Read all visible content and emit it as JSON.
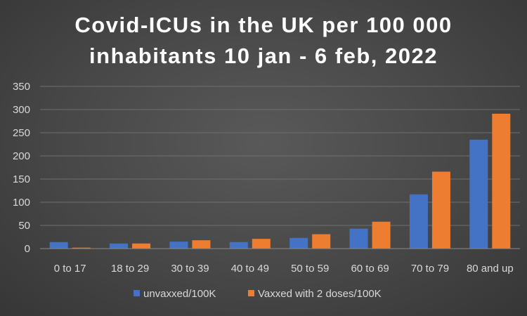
{
  "chart_data": {
    "type": "bar",
    "title": [
      "Covid-ICUs in the UK per 100 000",
      "inhabitants 10 jan - 6 feb, 2022"
    ],
    "categories": [
      "0 to 17",
      "18 to 29",
      "30 to 39",
      "40 to 49",
      "50 to 59",
      "60 to 69",
      "70 to 79",
      "80 and up"
    ],
    "series": [
      {
        "name": "unvaxxed/100K",
        "values": [
          14,
          11,
          15,
          14,
          23,
          43,
          117,
          235
        ]
      },
      {
        "name": "Vaxxed with 2 doses/100K",
        "values": [
          2,
          11,
          18,
          21,
          31,
          58,
          166,
          291
        ]
      }
    ],
    "ylim": [
      0,
      350
    ],
    "yticks": [
      0,
      50,
      100,
      150,
      200,
      250,
      300,
      350
    ],
    "grid": true,
    "legend_position": "bottom",
    "colors": {
      "series_0": "#4472c4",
      "series_1": "#ed7d31",
      "gridline": "#6f6f6f",
      "text": "#d9d9d9"
    }
  }
}
